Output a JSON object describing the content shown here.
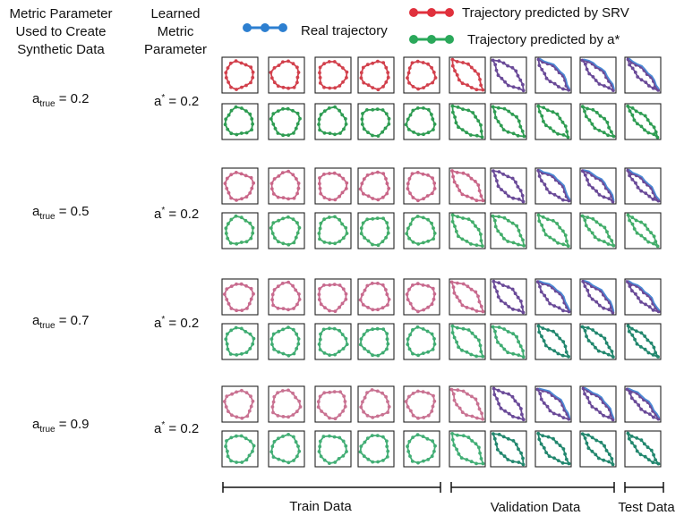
{
  "headers": {
    "col1": "Metric Parameter Used to Create Synthetic Data",
    "col2": "Learned Metric Parameter"
  },
  "legend": [
    {
      "label": "Real trajectory",
      "color": "#2d7fd0"
    },
    {
      "label": "Trajectory predicted by SRV",
      "color": "#e0303c"
    },
    {
      "label": "Trajectory predicted by a*",
      "color": "#2aa85a"
    }
  ],
  "rows": [
    {
      "a_true_symbol": "a",
      "a_true_sub": "true",
      "a_true_value": "= 0.2",
      "a_star_symbol": "a",
      "a_star_sup": "*",
      "a_star_value": "= 0.2"
    },
    {
      "a_true_symbol": "a",
      "a_true_sub": "true",
      "a_true_value": "= 0.5",
      "a_star_symbol": "a",
      "a_star_sup": "*",
      "a_star_value": "= 0.2"
    },
    {
      "a_true_symbol": "a",
      "a_true_sub": "true",
      "a_true_value": "= 0.7",
      "a_star_symbol": "a",
      "a_star_sup": "*",
      "a_star_value": "= 0.2"
    },
    {
      "a_true_symbol": "a",
      "a_true_sub": "true",
      "a_true_value": "= 0.9",
      "a_star_symbol": "a",
      "a_star_sup": "*",
      "a_star_value": "= 0.2"
    }
  ],
  "splits": [
    "Train Data",
    "Validation Data",
    "Test Data"
  ],
  "colors": {
    "srv_row": [
      "#d2404c",
      "#c96688",
      "#c86a8e",
      "#c97292"
    ],
    "astar_row": [
      "#2e9c52",
      "#42ad6a",
      "#3fac72",
      "#42ae75"
    ],
    "val_purple": "#6a4a98",
    "real_blue": "#4a8ad6",
    "teal": "#22876e"
  }
}
